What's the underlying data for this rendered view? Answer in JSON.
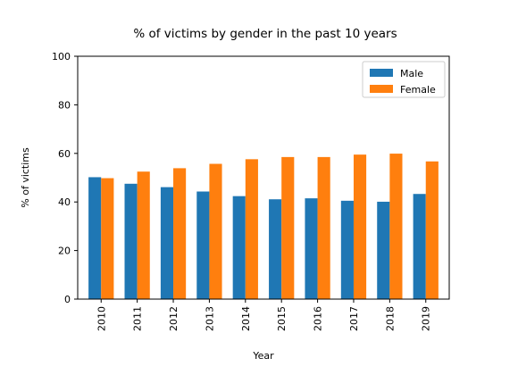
{
  "chart_data": {
    "type": "bar",
    "title": "% of victims by gender in the past 10 years",
    "xlabel": "Year",
    "ylabel": "% of victims",
    "categories": [
      "2010",
      "2011",
      "2012",
      "2013",
      "2014",
      "2015",
      "2016",
      "2017",
      "2018",
      "2019"
    ],
    "series": [
      {
        "name": "Male",
        "color": "#1f77b4",
        "values": [
          50.2,
          47.5,
          46.1,
          44.3,
          42.4,
          41.1,
          41.5,
          40.5,
          40.1,
          43.3
        ]
      },
      {
        "name": "Female",
        "color": "#ff7f0e",
        "values": [
          49.8,
          52.5,
          53.9,
          55.7,
          57.6,
          58.5,
          58.5,
          59.5,
          59.9,
          56.7
        ]
      }
    ],
    "ylim": [
      0,
      100
    ],
    "yticks": [
      0,
      20,
      40,
      60,
      80,
      100
    ],
    "grid": false,
    "legend_position": "top-right"
  }
}
